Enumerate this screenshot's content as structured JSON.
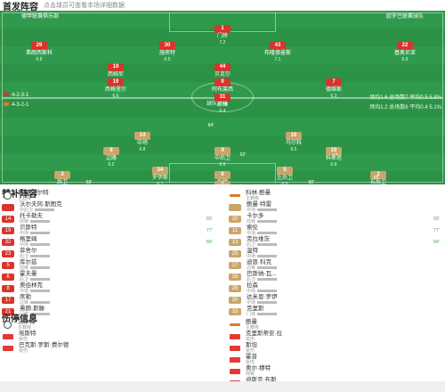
{
  "header": {
    "title": "首发阵容",
    "subtitle": "点击球员可查看本场详细数据"
  },
  "colors": {
    "pitch": "#2f9a4b",
    "home": "#d9342b",
    "away": "#caa56b",
    "event_green": "#4caf50",
    "injury": "#e53935"
  },
  "pitch": {
    "home_team": "德甲联赛俱乐部",
    "away_team": "欧罗巴联赛球队",
    "home_formation": "4-2-3-1",
    "away_formation": "4-3-2-1",
    "home_rate": "场均1.6 总场数7 平均0.5 5.8%",
    "away_rate": "场均1.2 总场数6 平均0.4 5.1%",
    "center_label": "球队对阵",
    "home_players": [
      {
        "num": "1",
        "name": "门将",
        "rating": "7.2"
      },
      {
        "num": "29",
        "name": "弗朗西斯科",
        "rating": "6.8"
      },
      {
        "num": "30",
        "name": "施密特",
        "rating": "6.5"
      },
      {
        "num": "43",
        "name": "布隆德曼斯",
        "rating": "7.1"
      },
      {
        "num": "22",
        "name": "基奥尼亚",
        "rating": "6.9"
      },
      {
        "num": "18",
        "name": "西姆尼",
        "rating": "7.4"
      },
      {
        "num": "44",
        "name": "贝克尔",
        "rating": "6.7"
      },
      {
        "num": "19",
        "name": "西格里尔",
        "rating": "6.6"
      },
      {
        "num": "9",
        "name": "阿布莱西",
        "rating": "7.0"
      },
      {
        "num": "7",
        "name": "德维斯",
        "rating": "6.3"
      },
      {
        "num": "31",
        "name": "前锋",
        "rating": "6.4"
      }
    ],
    "away_players": [
      {
        "num": "14",
        "name": "中场",
        "rating": "6.8"
      },
      {
        "num": "16",
        "name": "马尔科",
        "rating": "6.5"
      },
      {
        "num": "4",
        "name": "中后卫",
        "rating": "6.6"
      },
      {
        "num": "8",
        "name": "边路",
        "rating": "6.2"
      },
      {
        "num": "10",
        "name": "科斯塔",
        "rating": "6.9"
      },
      {
        "num": "24",
        "name": "罗伊斯",
        "rating": "6.1"
      },
      {
        "num": "3",
        "name": "后卫",
        "rating": "6.4"
      },
      {
        "num": "5",
        "name": "左后卫",
        "rating": "6.0"
      },
      {
        "num": "2",
        "name": "右后卫",
        "rating": "6.3"
      },
      {
        "num": "6",
        "name": "后腰",
        "rating": "6.7"
      },
      {
        "num": "1",
        "name": "门将",
        "rating": "6.5"
      }
    ],
    "event_marks": [
      "84'",
      "62'",
      "77'",
      "65'",
      "58'",
      "80'"
    ]
  },
  "subs": {
    "title": "替补阵容",
    "home_coach": {
      "name": "蒂姆·沃尔特",
      "role": "主教练"
    },
    "away_coach": {
      "name": "科林·鲍曼",
      "role": "主教练"
    },
    "home": [
      {
        "num": "",
        "name": "沃尔夫冈·斯图克",
        "pos": "中后卫",
        "evt": ""
      },
      {
        "num": "14",
        "name": "托卡勒夫",
        "pos": "前锋",
        "evt": "65'"
      },
      {
        "num": "19",
        "name": "贝斯特",
        "pos": "中场",
        "evt": "77'"
      },
      {
        "num": "32",
        "name": "格里姆",
        "pos": "中场",
        "evt": "84'"
      },
      {
        "num": "23",
        "name": "菲舍尔",
        "pos": "后卫",
        "evt": ""
      },
      {
        "num": "5",
        "name": "库尔兹",
        "pos": "前锋",
        "evt": ""
      },
      {
        "num": "6",
        "name": "霍夫曼",
        "pos": "后卫",
        "evt": ""
      },
      {
        "num": "8",
        "name": "奥伯林克",
        "pos": "中场",
        "evt": ""
      },
      {
        "num": "17",
        "name": "席勒",
        "pos": "边锋",
        "evt": ""
      },
      {
        "num": "21",
        "name": "弗朗·斯滕",
        "pos": "门将",
        "evt": ""
      }
    ],
    "away": [
      {
        "num": "",
        "name": "鲍曼·特雷",
        "pos": "中场",
        "evt": ""
      },
      {
        "num": "20",
        "name": "卡尔多",
        "pos": "前锋",
        "evt": "65'"
      },
      {
        "num": "11",
        "name": "索伦",
        "pos": "中场",
        "evt": "77'"
      },
      {
        "num": "13",
        "name": "克拉维茨",
        "pos": "后卫",
        "evt": "84'"
      },
      {
        "num": "25",
        "name": "温特",
        "pos": "中场",
        "evt": ""
      },
      {
        "num": "27",
        "name": "迪恩·科克",
        "pos": "边锋",
        "evt": ""
      },
      {
        "num": "26",
        "name": "巴斯纳-瓦...",
        "pos": "后卫",
        "evt": ""
      },
      {
        "num": "28",
        "name": "拉森",
        "pos": "中场",
        "evt": ""
      },
      {
        "num": "30",
        "name": "达米恩·罗伊",
        "pos": "中场",
        "evt": ""
      },
      {
        "num": "33",
        "name": "克里斯",
        "pos": "门将",
        "evt": ""
      }
    ]
  },
  "injuries": {
    "title": "伤停信息",
    "home_coach": {
      "name": "沃尔特",
      "role": "主教练"
    },
    "away_coach": {
      "name": "鲍曼",
      "role": "主教练"
    },
    "home": [
      {
        "name": "埃斯特",
        "pos": "受伤"
      },
      {
        "name": "巴克斯·罗斯·费尔德",
        "pos": "受伤"
      }
    ],
    "away": [
      {
        "name": "克里斯蒂安·拉",
        "pos": "受伤"
      },
      {
        "name": "斯坦",
        "pos": "受伤"
      },
      {
        "name": "霍普",
        "pos": "受伤"
      },
      {
        "name": "奥尔·穆特",
        "pos": "停赛"
      },
      {
        "name": "迪斯克·布斯",
        "pos": "受伤"
      }
    ]
  }
}
